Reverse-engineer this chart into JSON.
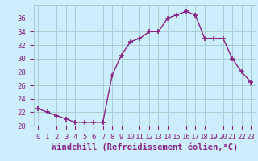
{
  "x": [
    0,
    1,
    2,
    3,
    4,
    5,
    6,
    7,
    8,
    9,
    10,
    11,
    12,
    13,
    14,
    15,
    16,
    17,
    18,
    19,
    20,
    21,
    22,
    23
  ],
  "y": [
    22.5,
    22.0,
    21.5,
    21.0,
    20.5,
    20.5,
    20.5,
    20.5,
    27.5,
    30.5,
    32.5,
    33.0,
    34.0,
    34.0,
    36.0,
    36.5,
    37.0,
    36.5,
    33.0,
    33.0,
    33.0,
    30.0,
    28.0,
    26.5
  ],
  "line_color": "#882288",
  "marker": "+",
  "marker_size": 4,
  "marker_linewidth": 1.2,
  "line_width": 1.0,
  "bg_color": "#cceeff",
  "grid_color": "#aacccc",
  "xlabel": "Windchill (Refroidissement éolien,°C)",
  "xlabel_color": "#882288",
  "tick_color": "#882288",
  "ylim": [
    20,
    38
  ],
  "yticks": [
    20,
    22,
    24,
    26,
    28,
    30,
    32,
    34,
    36
  ],
  "xlim": [
    -0.5,
    23.5
  ],
  "xticks": [
    0,
    1,
    2,
    3,
    4,
    5,
    6,
    7,
    8,
    9,
    10,
    11,
    12,
    13,
    14,
    15,
    16,
    17,
    18,
    19,
    20,
    21,
    22,
    23
  ],
  "xtick_labels": [
    "0",
    "1",
    "2",
    "3",
    "4",
    "5",
    "6",
    "7",
    "8",
    "9",
    "10",
    "11",
    "12",
    "13",
    "14",
    "15",
    "16",
    "17",
    "18",
    "19",
    "20",
    "21",
    "22",
    "23"
  ],
  "font_family": "monospace",
  "label_fontsize": 7.5,
  "tick_fontsize": 6.5
}
